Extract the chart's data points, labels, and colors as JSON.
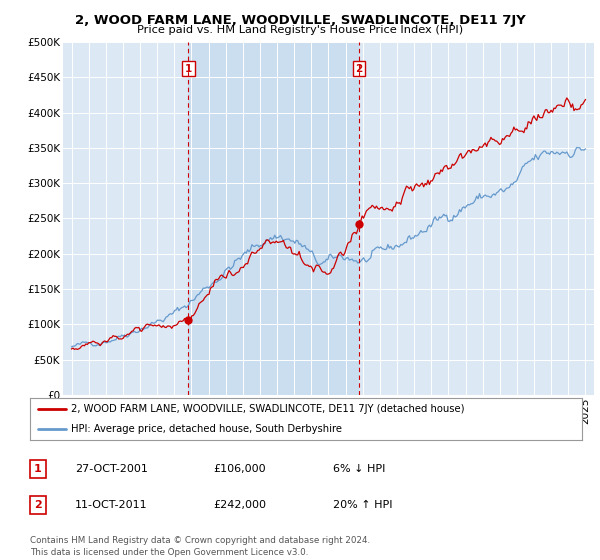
{
  "title": "2, WOOD FARM LANE, WOODVILLE, SWADLINCOTE, DE11 7JY",
  "subtitle": "Price paid vs. HM Land Registry's House Price Index (HPI)",
  "legend_line1": "2, WOOD FARM LANE, WOODVILLE, SWADLINCOTE, DE11 7JY (detached house)",
  "legend_line2": "HPI: Average price, detached house, South Derbyshire",
  "annotation1_label": "1",
  "annotation1_date": "27-OCT-2001",
  "annotation1_price": "£106,000",
  "annotation1_hpi": "6% ↓ HPI",
  "annotation2_label": "2",
  "annotation2_date": "11-OCT-2011",
  "annotation2_price": "£242,000",
  "annotation2_hpi": "20% ↑ HPI",
  "footer": "Contains HM Land Registry data © Crown copyright and database right 2024.\nThis data is licensed under the Open Government Licence v3.0.",
  "ylim": [
    0,
    500000
  ],
  "yticks": [
    0,
    50000,
    100000,
    150000,
    200000,
    250000,
    300000,
    350000,
    400000,
    450000,
    500000
  ],
  "bg_color": "#dce9f5",
  "red_line_color": "#cc0000",
  "blue_line_color": "#6699cc",
  "vline_color": "#cc0000",
  "shade_color": "#c8ddf0",
  "marker1_x": 2001.82,
  "marker1_y": 106000,
  "marker2_x": 2011.78,
  "marker2_y": 242000,
  "xmin": 1994.5,
  "xmax": 2025.5,
  "start_year": 1995,
  "end_year": 2025,
  "n_points": 360
}
